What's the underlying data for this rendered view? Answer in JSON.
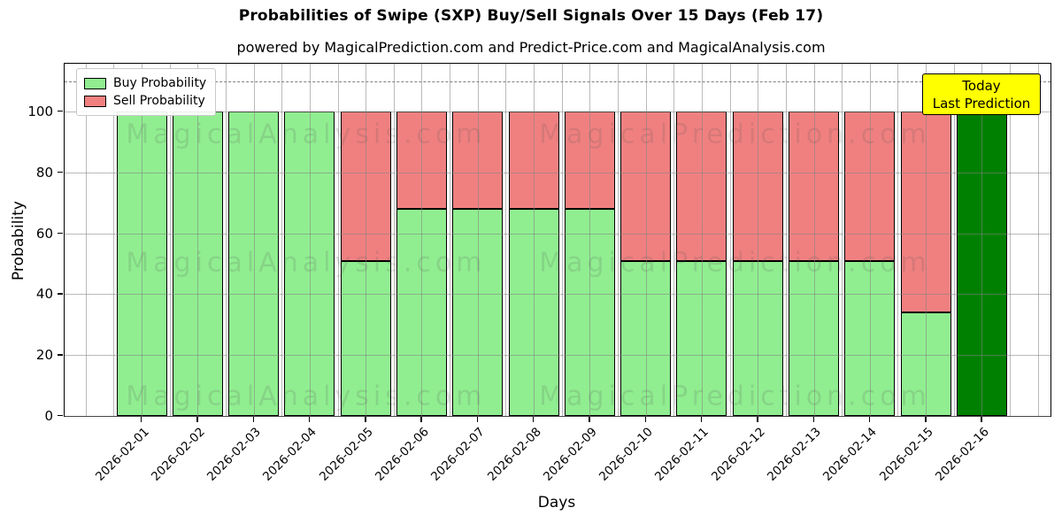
{
  "chart_data": {
    "type": "bar",
    "stacked": true,
    "title": "Probabilities of Swipe (SXP) Buy/Sell Signals Over 15 Days (Feb 17)",
    "subtitle": "powered by MagicalPrediction.com and Predict-Price.com and MagicalAnalysis.com",
    "xlabel": "Days",
    "ylabel": "Probability",
    "categories": [
      "2026-02-01",
      "2026-02-02",
      "2026-02-03",
      "2026-02-04",
      "2026-02-05",
      "2026-02-06",
      "2026-02-07",
      "2026-02-08",
      "2026-02-09",
      "2026-02-10",
      "2026-02-11",
      "2026-02-12",
      "2026-02-13",
      "2026-02-14",
      "2026-02-15",
      "2026-02-16"
    ],
    "series": [
      {
        "name": "Buy Probability",
        "color": "#90EE90",
        "values": [
          100,
          100,
          100,
          100,
          51,
          68,
          68,
          68,
          68,
          51,
          51,
          51,
          51,
          51,
          34,
          100
        ]
      },
      {
        "name": "Sell Probability",
        "color": "#F08080",
        "values": [
          0,
          0,
          0,
          0,
          49,
          32,
          32,
          32,
          32,
          49,
          49,
          49,
          49,
          49,
          66,
          0
        ]
      }
    ],
    "today_bar": {
      "category": "2026-02-16",
      "index": 15,
      "value": 100,
      "color": "#008000"
    },
    "yticks": [
      0,
      20,
      40,
      60,
      80,
      100
    ],
    "ylim": [
      0,
      115.7
    ],
    "dashed_line_y": 110,
    "grid": true,
    "legend_position": "upper-left",
    "annotation": {
      "lines": [
        "Today",
        "Last Prediction"
      ],
      "bg_color": "#FFFF00",
      "border_color": "#000000"
    },
    "colors": {
      "buy": "#90EE90",
      "sell": "#F08080",
      "today": "#008000",
      "bar_edge": "#000000",
      "grid": "#b0b0b0",
      "dashed_line": "#7f7f7f",
      "annotation_bg": "#FFFF00"
    },
    "watermarks": [
      {
        "text": "MagicalAnalysis.com",
        "fx": 0.245,
        "fy": 0.2
      },
      {
        "text": "MagicalPrediction.com",
        "fx": 0.68,
        "fy": 0.2
      },
      {
        "text": "MagicalAnalysis.com",
        "fx": 0.245,
        "fy": 0.565
      },
      {
        "text": "MagicalPrediction.com",
        "fx": 0.68,
        "fy": 0.565
      },
      {
        "text": "MagicalAnalysis.com",
        "fx": 0.245,
        "fy": 0.945
      },
      {
        "text": "MagicalPrediction.com",
        "fx": 0.68,
        "fy": 0.945
      }
    ]
  }
}
